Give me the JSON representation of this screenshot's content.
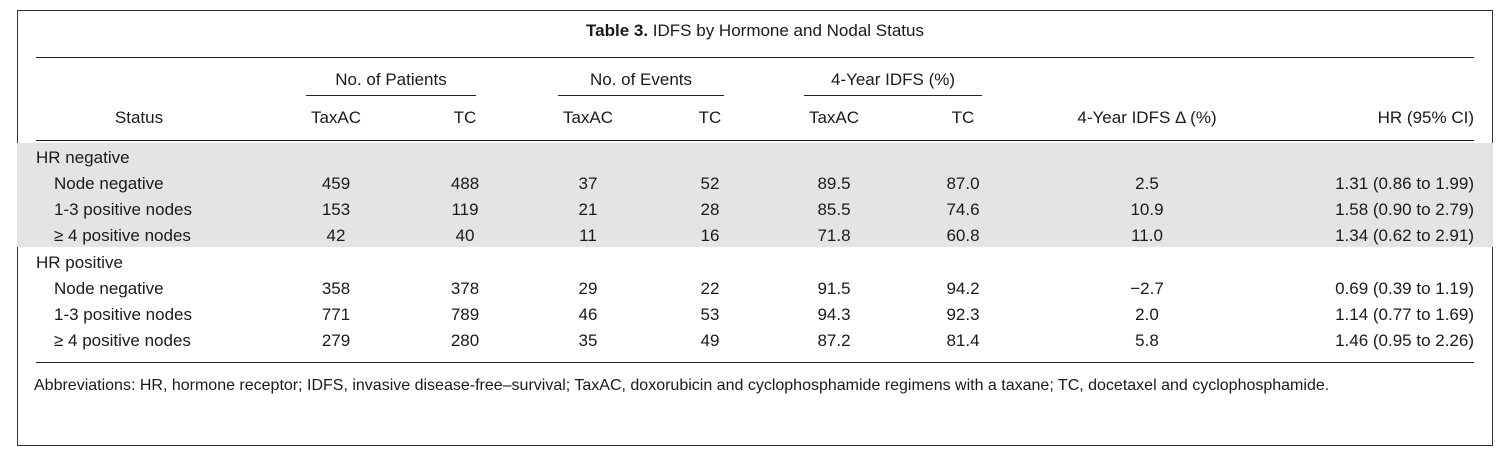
{
  "title": {
    "number": "Table 3.",
    "text": "IDFS by Hormone and Nodal Status"
  },
  "groups": {
    "patients": "No. of Patients",
    "events": "No. of Events",
    "idfs": "4-Year IDFS (%)"
  },
  "columns": {
    "status": "Status",
    "taxac": "TaxAC",
    "tc": "TC",
    "delta": "4-Year IDFS Δ (%)",
    "hr": "HR (95% CI)"
  },
  "sections": [
    {
      "label": "HR negative",
      "rows": [
        {
          "status": "Node negative",
          "pt": "459",
          "pc": "488",
          "et": "37",
          "ec": "52",
          "it": "89.5",
          "ic": "87.0",
          "d": "2.5",
          "hr": "1.31 (0.86 to 1.99)"
        },
        {
          "status": "1-3 positive nodes",
          "pt": "153",
          "pc": "119",
          "et": "21",
          "ec": "28",
          "it": "85.5",
          "ic": "74.6",
          "d": "10.9",
          "hr": "1.58 (0.90 to 2.79)"
        },
        {
          "status": "≥ 4 positive nodes",
          "pt": "42",
          "pc": "40",
          "et": "11",
          "ec": "16",
          "it": "71.8",
          "ic": "60.8",
          "d": "11.0",
          "hr": "1.34 (0.62 to 2.91)"
        }
      ]
    },
    {
      "label": "HR positive",
      "rows": [
        {
          "status": "Node negative",
          "pt": "358",
          "pc": "378",
          "et": "29",
          "ec": "22",
          "it": "91.5",
          "ic": "94.2",
          "d": "−2.7",
          "hr": "0.69 (0.39 to 1.19)"
        },
        {
          "status": "1-3 positive nodes",
          "pt": "771",
          "pc": "789",
          "et": "46",
          "ec": "53",
          "it": "94.3",
          "ic": "92.3",
          "d": "2.0",
          "hr": "1.14 (0.77 to 1.69)"
        },
        {
          "status": "≥ 4 positive nodes",
          "pt": "279",
          "pc": "280",
          "et": "35",
          "ec": "49",
          "it": "87.2",
          "ic": "81.4",
          "d": "5.8",
          "hr": "1.46 (0.95 to 2.26)"
        }
      ]
    }
  ],
  "footnote": "Abbreviations: HR, hormone receptor; IDFS, invasive disease-free–survival; TaxAC, doxorubicin and cyclophosphamide regimens with a taxane; TC, docetaxel and cyclophosphamide."
}
